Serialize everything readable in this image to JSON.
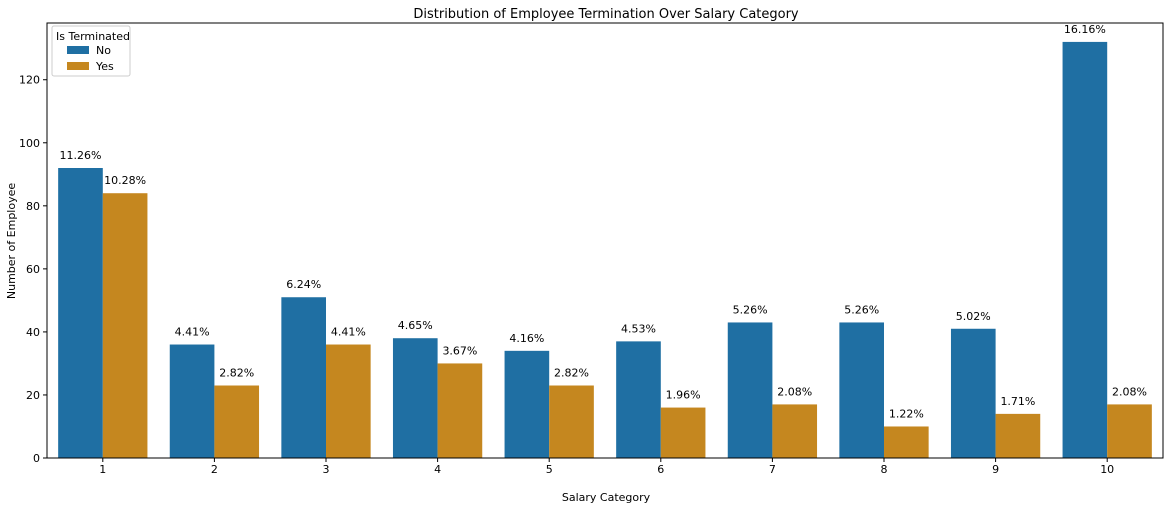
{
  "chart_data": {
    "type": "bar",
    "title": "Distribution of Employee Termination Over Salary Category",
    "xlabel": "Salary Category",
    "ylabel": "Number of Employee",
    "ylim": [
      0,
      138
    ],
    "yticks": [
      0,
      20,
      40,
      60,
      80,
      100,
      120
    ],
    "grid": false,
    "legend": {
      "title": "Is Terminated",
      "placement": "top-left"
    },
    "categories": [
      "1",
      "2",
      "3",
      "4",
      "5",
      "6",
      "7",
      "8",
      "9",
      "10"
    ],
    "series": [
      {
        "name": "No",
        "color": "#1f6fa3",
        "values": [
          92,
          36,
          51,
          38,
          34,
          37,
          43,
          43,
          41,
          132
        ],
        "labels": [
          "11.26%",
          "4.41%",
          "6.24%",
          "4.65%",
          "4.16%",
          "4.53%",
          "5.26%",
          "5.26%",
          "5.02%",
          "16.16%"
        ]
      },
      {
        "name": "Yes",
        "color": "#c5871f",
        "values": [
          84,
          23,
          36,
          30,
          23,
          16,
          17,
          10,
          14,
          17
        ],
        "labels": [
          "10.28%",
          "2.82%",
          "4.41%",
          "3.67%",
          "2.82%",
          "1.96%",
          "2.08%",
          "1.22%",
          "1.71%",
          "2.08%"
        ]
      }
    ]
  }
}
